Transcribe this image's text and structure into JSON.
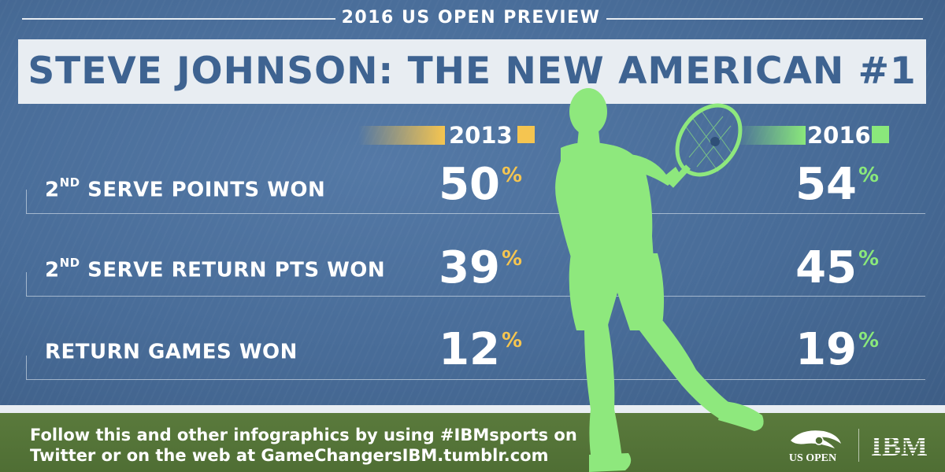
{
  "header": {
    "preview": "2016 US OPEN PREVIEW",
    "title": "STEVE JOHNSON: THE NEW AMERICAN #1"
  },
  "years": {
    "first": "2013",
    "second": "2016"
  },
  "rows": [
    {
      "label_pre": "2",
      "label_sup": "ND",
      "label_post": " SERVE POINTS WON",
      "val_2013": "50",
      "val_2016": "54"
    },
    {
      "label_pre": "2",
      "label_sup": "ND",
      "label_post": " SERVE RETURN PTS WON",
      "val_2013": "39",
      "val_2016": "45"
    },
    {
      "label_pre": "",
      "label_sup": "",
      "label_post": "RETURN GAMES WON",
      "val_2013": "12",
      "val_2016": "19"
    }
  ],
  "percent_symbol": "%",
  "footer": {
    "line1": "Follow this and other infographics by using #IBMsports on",
    "line2": "Twitter or on the web at GameChangersIBM.tumblr.com"
  },
  "logos": {
    "usopen": "US OPEN",
    "ibm": "IBM"
  },
  "colors": {
    "court": "#486c98",
    "title_text": "#3e6391",
    "accent_2013": "#f5c550",
    "accent_2016": "#8ae87b",
    "player": "#8ee87d"
  }
}
